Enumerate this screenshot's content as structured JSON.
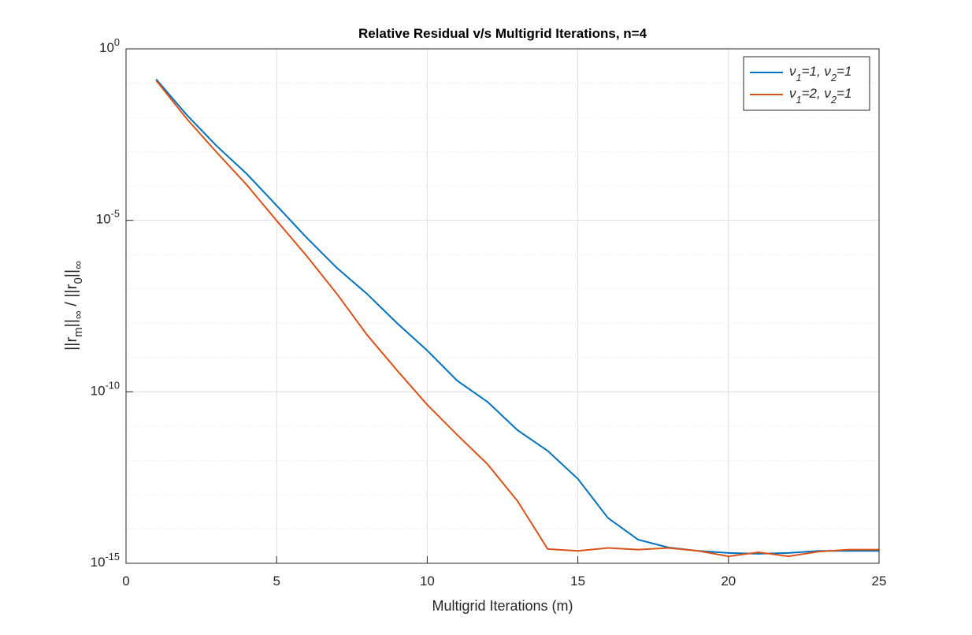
{
  "chart_data": {
    "type": "line",
    "title": "Relative Residual v/s Multigrid Iterations, n=4",
    "x_label": "Multigrid Iterations (m)",
    "y_label": "||r_m||_∞ / ||r_0||_∞",
    "x": [
      1,
      2,
      3,
      4,
      5,
      6,
      7,
      8,
      9,
      10,
      11,
      12,
      13,
      14,
      15,
      16,
      17,
      18,
      19,
      20,
      21,
      22,
      23,
      24,
      25
    ],
    "series": [
      {
        "name": "ν_1=1, ν_2=1",
        "color": "#0072bd",
        "values": [
          0.13,
          0.0123,
          0.0015,
          0.00023,
          2.7e-05,
          3.1e-06,
          4.1e-07,
          7.2e-08,
          1e-08,
          1.6e-09,
          2.1e-10,
          5.1e-11,
          7.6e-12,
          1.9e-12,
          2.9e-13,
          2.1e-14,
          4.9e-15,
          2.9e-15,
          2.3e-15,
          2e-15,
          1.9e-15,
          2e-15,
          2.3e-15,
          2.3e-15,
          2.3e-15
        ]
      },
      {
        "name": "ν_1=2, ν_2=1",
        "color": "#d95319",
        "values": [
          0.12,
          0.0095,
          0.00098,
          0.00011,
          9.8e-06,
          9.1e-07,
          7.2e-08,
          4.6e-09,
          4.2e-10,
          4.2e-11,
          5.5e-12,
          7.8e-13,
          6.5e-14,
          2.6e-15,
          2.3e-15,
          2.8e-15,
          2.5e-15,
          2.8e-15,
          2.3e-15,
          1.6e-15,
          2.1e-15,
          1.6e-15,
          2.2e-15,
          2.5e-15,
          2.5e-15
        ]
      }
    ],
    "xlim": [
      0,
      25
    ],
    "xticks": [
      0,
      5,
      10,
      15,
      20,
      25
    ],
    "ylim": [
      1e-15,
      1
    ],
    "log_y": true,
    "yticks": [
      {
        "value": 1,
        "label": "10^0"
      },
      {
        "value": 1e-05,
        "label": "10^-5"
      },
      {
        "value": 1e-10,
        "label": "10^-10"
      },
      {
        "value": 1e-15,
        "label": "10^-15"
      }
    ],
    "grid": true,
    "minor_grid": true,
    "legend": "northeast"
  }
}
